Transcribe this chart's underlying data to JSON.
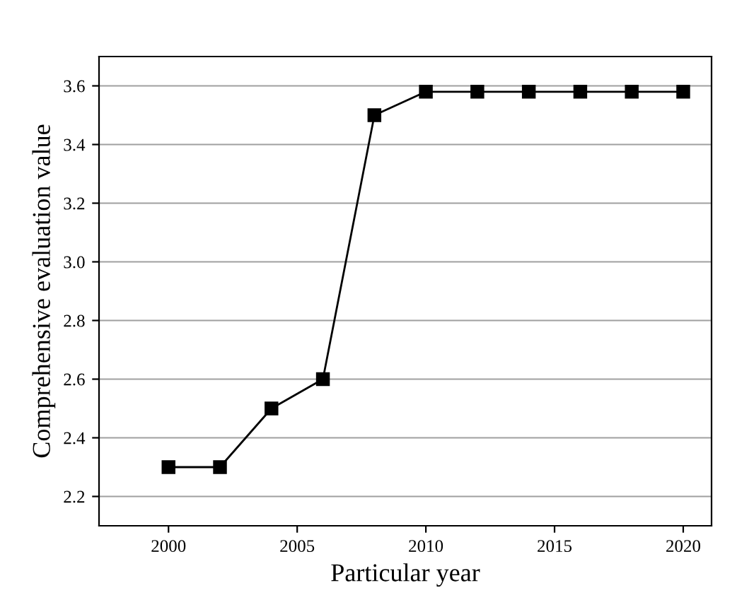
{
  "chart_data": {
    "type": "line",
    "xlabel": "Particular year",
    "ylabel": "Comprehensive evaluation value",
    "x": [
      2000,
      2002,
      2004,
      2006,
      2008,
      2010,
      2012,
      2014,
      2016,
      2018,
      2020
    ],
    "series": [
      {
        "color": "#000000",
        "values": [
          2.3,
          2.3,
          2.5,
          2.6,
          3.5,
          3.58,
          3.58,
          3.58,
          3.58,
          3.58,
          3.58
        ]
      }
    ],
    "xlim": [
      1997.3,
      2021.1
    ],
    "ylim": [
      2.1,
      3.7
    ],
    "xticks": [
      2000,
      2005,
      2010,
      2015,
      2020
    ],
    "yticks": [
      2.2,
      2.4,
      2.6,
      2.8,
      {
        "value": 3,
        "label": "3.0"
      },
      3.2,
      3.4,
      3.6
    ],
    "grid": "y",
    "marker": "square",
    "line_style": "solid"
  }
}
